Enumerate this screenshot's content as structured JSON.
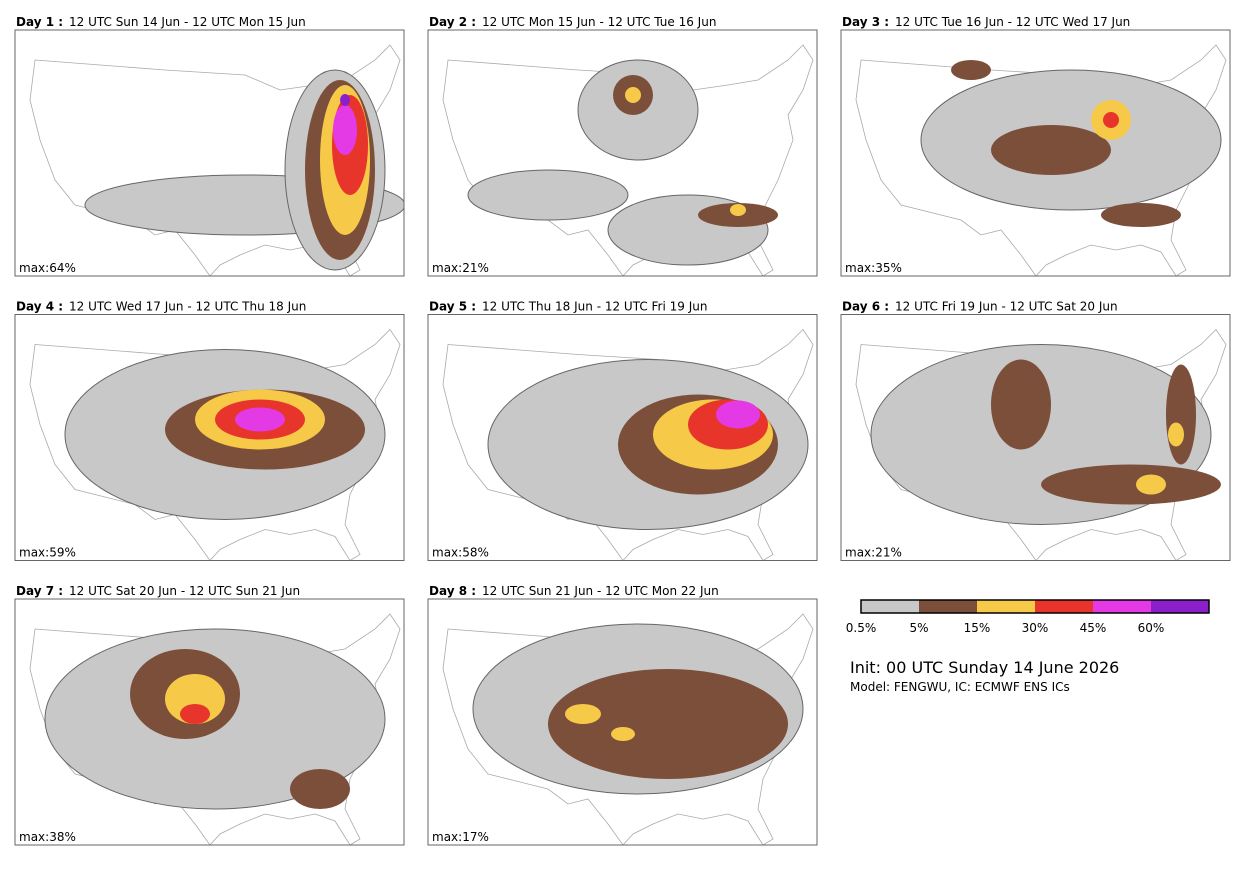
{
  "panels": [
    {
      "day": "Day 1 :",
      "period": "12 UTC Sun 14 Jun - 12 UTC Mon 15 Jun",
      "max": "max:64%"
    },
    {
      "day": "Day 2 :",
      "period": "12 UTC Mon 15 Jun - 12 UTC Tue 16 Jun",
      "max": "max:21%"
    },
    {
      "day": "Day 3 :",
      "period": "12 UTC Tue 16 Jun - 12 UTC Wed 17 Jun",
      "max": "max:35%"
    },
    {
      "day": "Day 4 :",
      "period": "12 UTC Wed 17 Jun - 12 UTC Thu 18 Jun",
      "max": "max:59%"
    },
    {
      "day": "Day 5 :",
      "period": "12 UTC Thu 18 Jun - 12 UTC Fri 19 Jun",
      "max": "max:58%"
    },
    {
      "day": "Day 6 :",
      "period": "12 UTC Fri 19 Jun - 12 UTC Sat 20 Jun",
      "max": "max:21%"
    },
    {
      "day": "Day 7 :",
      "period": "12 UTC Sat 20 Jun - 12 UTC Sun 21 Jun",
      "max": "max:38%"
    },
    {
      "day": "Day 8 :",
      "period": "12 UTC Sun 21 Jun - 12 UTC Mon 22 Jun",
      "max": "max:17%"
    }
  ],
  "legend": {
    "colors": [
      "#c8c8c8",
      "#7b4f3a",
      "#f7c948",
      "#e8352b",
      "#e33ae6",
      "#8b1fcc"
    ],
    "labels": [
      "0.5%",
      "5%",
      "15%",
      "30%",
      "45%",
      "60%"
    ]
  },
  "init": "Init: 00 UTC Sunday 14 June 2026",
  "model": "Model: FENGWU, IC: ECMWF ENS ICs"
}
